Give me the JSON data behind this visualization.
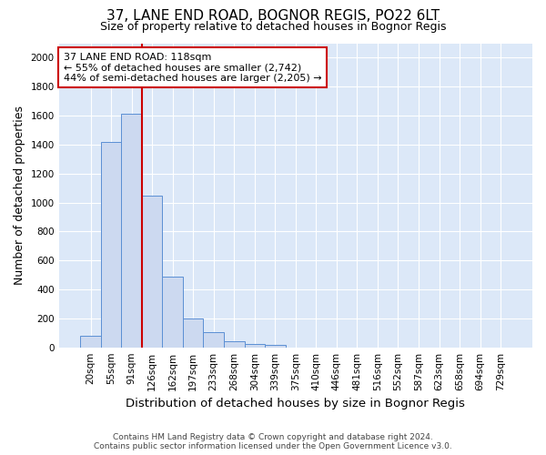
{
  "title_line1": "37, LANE END ROAD, BOGNOR REGIS, PO22 6LT",
  "title_line2": "Size of property relative to detached houses in Bognor Regis",
  "xlabel": "Distribution of detached houses by size in Bognor Regis",
  "ylabel": "Number of detached properties",
  "bar_labels": [
    "20sqm",
    "55sqm",
    "91sqm",
    "126sqm",
    "162sqm",
    "197sqm",
    "233sqm",
    "268sqm",
    "304sqm",
    "339sqm",
    "375sqm",
    "410sqm",
    "446sqm",
    "481sqm",
    "516sqm",
    "552sqm",
    "587sqm",
    "623sqm",
    "658sqm",
    "694sqm",
    "729sqm"
  ],
  "bar_values": [
    80,
    1420,
    1610,
    1050,
    490,
    200,
    105,
    40,
    25,
    15,
    0,
    0,
    0,
    0,
    0,
    0,
    0,
    0,
    0,
    0,
    0
  ],
  "bar_color": "#ccd9f0",
  "bar_edge_color": "#5b8fd4",
  "vline_color": "#cc0000",
  "annotation_text": "37 LANE END ROAD: 118sqm\n← 55% of detached houses are smaller (2,742)\n44% of semi-detached houses are larger (2,205) →",
  "annotation_box_color": "#ffffff",
  "annotation_box_edge_color": "#cc0000",
  "ylim": [
    0,
    2100
  ],
  "yticks": [
    0,
    200,
    400,
    600,
    800,
    1000,
    1200,
    1400,
    1600,
    1800,
    2000
  ],
  "plot_background_color": "#dce8f8",
  "figure_background_color": "#ffffff",
  "grid_color": "#ffffff",
  "footer_line1": "Contains HM Land Registry data © Crown copyright and database right 2024.",
  "footer_line2": "Contains public sector information licensed under the Open Government Licence v3.0.",
  "title1_fontsize": 11,
  "title2_fontsize": 9,
  "ylabel_fontsize": 9,
  "xlabel_fontsize": 9.5,
  "tick_fontsize": 7.5,
  "annotation_fontsize": 8,
  "footer_fontsize": 6.5
}
